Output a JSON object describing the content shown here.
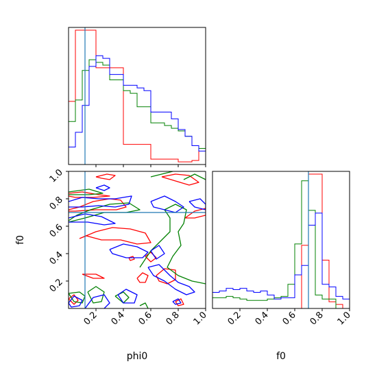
{
  "chart_data": {
    "type": "corner",
    "parameters": [
      "phi0",
      "f0"
    ],
    "xlabels": {
      "phi0": "phi0",
      "f0": "f0"
    },
    "ylabels": {
      "f0": "f0"
    },
    "tick_labels": [
      "0.2",
      "0.4",
      "0.6",
      "0.8",
      "1.0"
    ],
    "truths": {
      "phi0": 0.12,
      "f0": 0.7
    },
    "colors": {
      "red": "#ff0000",
      "green": "#008000",
      "blue": "#0000ff",
      "truth": "#1f77b4"
    },
    "series_colors": [
      "red",
      "green",
      "blue"
    ],
    "hist_phi0": {
      "bins": 20,
      "range": [
        0,
        1
      ],
      "red": [
        0.47,
        1.0,
        1.0,
        1.0,
        0.72,
        0.72,
        0.72,
        0.72,
        0.15,
        0.15,
        0.15,
        0.15,
        0.04,
        0.04,
        0.04,
        0.04,
        0.02,
        0.02,
        0.03,
        0.12
      ],
      "green": [
        0.32,
        0.48,
        0.7,
        0.78,
        0.76,
        0.74,
        0.63,
        0.63,
        0.55,
        0.53,
        0.43,
        0.43,
        0.31,
        0.31,
        0.29,
        0.27,
        0.25,
        0.21,
        0.14,
        0.12
      ],
      "blue": [
        0.13,
        0.24,
        0.44,
        0.73,
        0.81,
        0.79,
        0.67,
        0.67,
        0.59,
        0.59,
        0.57,
        0.55,
        0.39,
        0.39,
        0.39,
        0.34,
        0.26,
        0.21,
        0.14,
        0.1
      ]
    },
    "hist_f0": {
      "bins": 20,
      "range": [
        0,
        1
      ],
      "red": [
        0.0,
        0.0,
        0.0,
        0.0,
        0.0,
        0.0,
        0.0,
        0.0,
        0.0,
        0.0,
        0.0,
        0.0,
        0.0,
        0.47,
        1.0,
        1.0,
        0.36,
        0.05,
        0.03,
        0.0
      ],
      "green": [
        0.08,
        0.08,
        0.09,
        0.08,
        0.07,
        0.06,
        0.06,
        0.06,
        0.07,
        0.08,
        0.09,
        0.18,
        0.48,
        0.95,
        0.73,
        0.1,
        0.07,
        0.07,
        0.0,
        0.0
      ],
      "blue": [
        0.12,
        0.13,
        0.15,
        0.14,
        0.15,
        0.13,
        0.12,
        0.13,
        0.1,
        0.07,
        0.08,
        0.08,
        0.25,
        0.32,
        0.62,
        0.71,
        0.18,
        0.16,
        0.09,
        0.07
      ]
    },
    "contours": [
      {
        "color": "red",
        "points": [
          [
            0.0,
            0.72
          ],
          [
            0.08,
            0.74
          ],
          [
            0.18,
            0.78
          ],
          [
            0.3,
            0.8
          ],
          [
            0.38,
            0.79
          ],
          [
            0.42,
            0.74
          ],
          [
            0.35,
            0.72
          ],
          [
            0.2,
            0.72
          ],
          [
            0.05,
            0.71
          ],
          [
            0.0,
            0.71
          ]
        ]
      },
      {
        "color": "red",
        "points": [
          [
            0.0,
            0.84
          ],
          [
            0.1,
            0.85
          ],
          [
            0.22,
            0.83
          ],
          [
            0.3,
            0.82
          ],
          [
            0.18,
            0.81
          ],
          [
            0.05,
            0.81
          ],
          [
            0.0,
            0.82
          ]
        ]
      },
      {
        "color": "red",
        "points": [
          [
            0.2,
            0.96
          ],
          [
            0.28,
            0.98
          ],
          [
            0.34,
            0.97
          ],
          [
            0.3,
            0.94
          ],
          [
            0.24,
            0.95
          ],
          [
            0.2,
            0.96
          ]
        ]
      },
      {
        "color": "red",
        "points": [
          [
            0.08,
            0.51
          ],
          [
            0.2,
            0.56
          ],
          [
            0.32,
            0.59
          ],
          [
            0.45,
            0.58
          ],
          [
            0.56,
            0.55
          ],
          [
            0.6,
            0.48
          ],
          [
            0.5,
            0.47
          ],
          [
            0.38,
            0.5
          ],
          [
            0.24,
            0.5
          ],
          [
            0.13,
            0.53
          ],
          [
            0.08,
            0.51
          ]
        ]
      },
      {
        "color": "red",
        "points": [
          [
            0.56,
            0.38
          ],
          [
            0.6,
            0.41
          ],
          [
            0.64,
            0.37
          ],
          [
            0.6,
            0.34
          ],
          [
            0.56,
            0.38
          ]
        ]
      },
      {
        "color": "red",
        "points": [
          [
            0.44,
            0.37
          ],
          [
            0.47,
            0.38
          ],
          [
            0.48,
            0.36
          ],
          [
            0.45,
            0.35
          ],
          [
            0.44,
            0.37
          ]
        ]
      },
      {
        "color": "red",
        "points": [
          [
            0.5,
            0.22
          ],
          [
            0.54,
            0.26
          ],
          [
            0.58,
            0.24
          ],
          [
            0.56,
            0.19
          ],
          [
            0.52,
            0.19
          ],
          [
            0.5,
            0.22
          ]
        ]
      },
      {
        "color": "red",
        "points": [
          [
            0.64,
            0.24
          ],
          [
            0.7,
            0.29
          ],
          [
            0.78,
            0.28
          ],
          [
            0.78,
            0.21
          ],
          [
            0.72,
            0.18
          ],
          [
            0.66,
            0.2
          ],
          [
            0.64,
            0.24
          ]
        ]
      },
      {
        "color": "red",
        "points": [
          [
            0.85,
            0.66
          ],
          [
            0.92,
            0.71
          ],
          [
            1.0,
            0.73
          ],
          [
            1.0,
            0.68
          ],
          [
            0.92,
            0.66
          ],
          [
            0.85,
            0.66
          ]
        ]
      },
      {
        "color": "red",
        "points": [
          [
            0.68,
            0.96
          ],
          [
            0.78,
            0.98
          ],
          [
            0.88,
            0.97
          ],
          [
            0.95,
            0.92
          ],
          [
            0.88,
            0.9
          ],
          [
            0.78,
            0.93
          ],
          [
            0.68,
            0.96
          ]
        ]
      },
      {
        "color": "red",
        "points": [
          [
            0.1,
            0.25
          ],
          [
            0.18,
            0.22
          ],
          [
            0.26,
            0.22
          ],
          [
            0.2,
            0.25
          ],
          [
            0.1,
            0.25
          ]
        ]
      },
      {
        "color": "red",
        "points": [
          [
            0.0,
            0.07
          ],
          [
            0.04,
            0.1
          ],
          [
            0.07,
            0.06
          ],
          [
            0.04,
            0.03
          ],
          [
            0.0,
            0.07
          ]
        ]
      },
      {
        "color": "red",
        "points": [
          [
            0.78,
            0.05
          ],
          [
            0.82,
            0.07
          ],
          [
            0.84,
            0.03
          ],
          [
            0.8,
            0.02
          ],
          [
            0.78,
            0.05
          ]
        ]
      },
      {
        "color": "green",
        "points": [
          [
            0.0,
            0.64
          ],
          [
            0.06,
            0.68
          ],
          [
            0.16,
            0.72
          ],
          [
            0.3,
            0.76
          ],
          [
            0.44,
            0.77
          ],
          [
            0.52,
            0.72
          ],
          [
            0.42,
            0.7
          ],
          [
            0.26,
            0.7
          ],
          [
            0.12,
            0.66
          ],
          [
            0.0,
            0.63
          ]
        ]
      },
      {
        "color": "green",
        "points": [
          [
            0.0,
            0.85
          ],
          [
            0.15,
            0.87
          ],
          [
            0.25,
            0.84
          ],
          [
            0.15,
            0.83
          ],
          [
            0.0,
            0.83
          ]
        ]
      },
      {
        "color": "green",
        "points": [
          [
            0.0,
            0.11
          ],
          [
            0.08,
            0.12
          ],
          [
            0.12,
            0.09
          ],
          [
            0.1,
            0.04
          ],
          [
            0.04,
            0.05
          ],
          [
            0.0,
            0.11
          ]
        ]
      },
      {
        "color": "green",
        "points": [
          [
            0.14,
            0.12
          ],
          [
            0.2,
            0.16
          ],
          [
            0.26,
            0.12
          ],
          [
            0.24,
            0.05
          ],
          [
            0.18,
            0.04
          ],
          [
            0.14,
            0.12
          ]
        ]
      },
      {
        "color": "green",
        "points": [
          [
            0.34,
            0.09
          ],
          [
            0.4,
            0.12
          ],
          [
            0.44,
            0.08
          ],
          [
            0.4,
            0.04
          ],
          [
            0.34,
            0.09
          ]
        ]
      },
      {
        "color": "green",
        "points": [
          [
            0.52,
            0.3
          ],
          [
            0.6,
            0.42
          ],
          [
            0.68,
            0.5
          ],
          [
            0.74,
            0.56
          ],
          [
            0.74,
            0.66
          ],
          [
            0.7,
            0.72
          ],
          [
            0.78,
            0.76
          ],
          [
            0.86,
            0.72
          ],
          [
            0.84,
            0.62
          ],
          [
            0.8,
            0.56
          ],
          [
            0.82,
            0.46
          ],
          [
            0.76,
            0.38
          ],
          [
            0.72,
            0.3
          ],
          [
            0.8,
            0.24
          ],
          [
            0.9,
            0.2
          ],
          [
            1.0,
            0.18
          ]
        ]
      },
      {
        "color": "green",
        "points": [
          [
            0.6,
            0.96
          ],
          [
            0.68,
            0.98
          ],
          [
            0.76,
            1.0
          ]
        ]
      },
      {
        "color": "green",
        "points": [
          [
            0.84,
            0.94
          ],
          [
            0.92,
            0.98
          ],
          [
            1.0,
            0.94
          ]
        ]
      },
      {
        "color": "green",
        "points": [
          [
            0.52,
            0.02
          ],
          [
            0.56,
            0.04
          ],
          [
            0.58,
            0.0
          ]
        ]
      },
      {
        "color": "blue",
        "points": [
          [
            0.0,
            0.78
          ],
          [
            0.1,
            0.81
          ],
          [
            0.22,
            0.8
          ],
          [
            0.34,
            0.8
          ],
          [
            0.46,
            0.82
          ],
          [
            0.44,
            0.76
          ],
          [
            0.34,
            0.74
          ],
          [
            0.22,
            0.75
          ],
          [
            0.1,
            0.74
          ],
          [
            0.0,
            0.74
          ]
        ]
      },
      {
        "color": "blue",
        "points": [
          [
            0.0,
            0.66
          ],
          [
            0.12,
            0.69
          ],
          [
            0.24,
            0.67
          ],
          [
            0.34,
            0.62
          ],
          [
            0.26,
            0.61
          ],
          [
            0.14,
            0.63
          ],
          [
            0.0,
            0.63
          ]
        ]
      },
      {
        "color": "blue",
        "points": [
          [
            0.6,
            0.78
          ],
          [
            0.7,
            0.82
          ],
          [
            0.78,
            0.78
          ],
          [
            0.84,
            0.74
          ],
          [
            0.78,
            0.7
          ],
          [
            0.7,
            0.72
          ],
          [
            0.62,
            0.74
          ],
          [
            0.6,
            0.78
          ]
        ]
      },
      {
        "color": "blue",
        "points": [
          [
            0.88,
            0.78
          ],
          [
            0.96,
            0.8
          ],
          [
            1.0,
            0.76
          ],
          [
            1.0,
            0.72
          ],
          [
            0.92,
            0.74
          ],
          [
            0.88,
            0.78
          ]
        ]
      },
      {
        "color": "blue",
        "points": [
          [
            0.3,
            0.43
          ],
          [
            0.4,
            0.47
          ],
          [
            0.5,
            0.45
          ],
          [
            0.58,
            0.41
          ],
          [
            0.54,
            0.37
          ],
          [
            0.42,
            0.37
          ],
          [
            0.32,
            0.4
          ],
          [
            0.3,
            0.43
          ]
        ]
      },
      {
        "color": "blue",
        "points": [
          [
            0.6,
            0.42
          ],
          [
            0.66,
            0.46
          ],
          [
            0.7,
            0.4
          ],
          [
            0.64,
            0.36
          ],
          [
            0.6,
            0.42
          ]
        ]
      },
      {
        "color": "blue",
        "points": [
          [
            0.58,
            0.3
          ],
          [
            0.66,
            0.32
          ],
          [
            0.74,
            0.24
          ],
          [
            0.8,
            0.19
          ],
          [
            0.88,
            0.16
          ],
          [
            0.92,
            0.12
          ],
          [
            0.86,
            0.1
          ],
          [
            0.78,
            0.14
          ],
          [
            0.7,
            0.2
          ],
          [
            0.62,
            0.24
          ],
          [
            0.58,
            0.3
          ]
        ]
      },
      {
        "color": "blue",
        "points": [
          [
            0.0,
            0.04
          ],
          [
            0.04,
            0.09
          ],
          [
            0.1,
            0.06
          ],
          [
            0.08,
            0.02
          ],
          [
            0.02,
            0.01
          ],
          [
            0.0,
            0.04
          ]
        ]
      },
      {
        "color": "blue",
        "points": [
          [
            0.12,
            0.0
          ],
          [
            0.18,
            0.08
          ],
          [
            0.26,
            0.1
          ],
          [
            0.3,
            0.04
          ],
          [
            0.26,
            0.0
          ]
        ]
      },
      {
        "color": "blue",
        "points": [
          [
            0.36,
            0.1
          ],
          [
            0.42,
            0.14
          ],
          [
            0.5,
            0.1
          ],
          [
            0.48,
            0.04
          ],
          [
            0.4,
            0.04
          ],
          [
            0.36,
            0.1
          ]
        ]
      },
      {
        "color": "blue",
        "points": [
          [
            0.2,
            0.88
          ],
          [
            0.26,
            0.9
          ],
          [
            0.3,
            0.88
          ],
          [
            0.26,
            0.86
          ],
          [
            0.2,
            0.88
          ]
        ]
      },
      {
        "color": "blue",
        "points": [
          [
            0.76,
            0.05
          ],
          [
            0.8,
            0.07
          ],
          [
            0.82,
            0.04
          ],
          [
            0.78,
            0.03
          ],
          [
            0.76,
            0.05
          ]
        ]
      }
    ]
  }
}
